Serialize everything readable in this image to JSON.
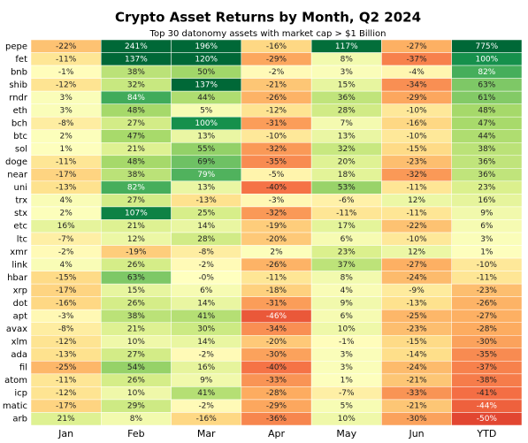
{
  "chart_data": {
    "type": "heatmap",
    "title": "Crypto Asset Returns by Month, Q2 2024",
    "subtitle": "Top 30 datonomy assets with market cap > $1 Billion",
    "x": [
      "Jan",
      "Feb",
      "Mar",
      "Apr",
      "May",
      "Jun",
      "YTD"
    ],
    "y": [
      "pepe",
      "fet",
      "bnb",
      "shib",
      "rndr",
      "eth",
      "bch",
      "btc",
      "sol",
      "doge",
      "near",
      "uni",
      "trx",
      "stx",
      "etc",
      "ltc",
      "xmr",
      "link",
      "hbar",
      "xrp",
      "dot",
      "apt",
      "avax",
      "xlm",
      "ada",
      "fil",
      "atom",
      "icp",
      "matic",
      "arb"
    ],
    "values": [
      [
        -22,
        241,
        196,
        -16,
        117,
        -27,
        775
      ],
      [
        -11,
        137,
        120,
        -29,
        8,
        -37,
        100
      ],
      [
        -1,
        38,
        50,
        -2,
        3,
        -4,
        82
      ],
      [
        -12,
        32,
        137,
        -21,
        15,
        -34,
        63
      ],
      [
        3,
        84,
        44,
        -26,
        36,
        -29,
        61
      ],
      [
        3,
        48,
        5,
        -12,
        28,
        -10,
        48
      ],
      [
        -8,
        27,
        100,
        -31,
        7,
        -16,
        47
      ],
      [
        2,
        47,
        13,
        -10,
        13,
        -10,
        44
      ],
      [
        1,
        21,
        55,
        -32,
        32,
        -15,
        38
      ],
      [
        -11,
        48,
        69,
        -35,
        20,
        -23,
        36
      ],
      [
        -17,
        38,
        79,
        -5,
        18,
        -32,
        36
      ],
      [
        -13,
        82,
        13,
        -40,
        53,
        -11,
        23
      ],
      [
        4,
        27,
        -13,
        -3,
        -6,
        12,
        16
      ],
      [
        2,
        107,
        25,
        -32,
        -11,
        -11,
        9
      ],
      [
        16,
        21,
        14,
        -19,
        17,
        -22,
        6
      ],
      [
        -7,
        12,
        28,
        -20,
        6,
        -10,
        3
      ],
      [
        -2,
        -19,
        -8,
        2,
        23,
        12,
        1
      ],
      [
        4,
        26,
        -2,
        -26,
        37,
        -27,
        -10
      ],
      [
        -15,
        63,
        0,
        -11,
        8,
        -24,
        -11
      ],
      [
        -17,
        15,
        6,
        -18,
        4,
        -9,
        -23
      ],
      [
        -16,
        26,
        14,
        -31,
        9,
        -13,
        -26
      ],
      [
        -3,
        38,
        41,
        -46,
        6,
        -25,
        -27
      ],
      [
        -8,
        21,
        30,
        -34,
        10,
        -23,
        -28
      ],
      [
        -12,
        10,
        14,
        -20,
        -1,
        -15,
        -30
      ],
      [
        -13,
        27,
        -2,
        -30,
        3,
        -14,
        -35
      ],
      [
        -25,
        54,
        16,
        -40,
        3,
        -24,
        -37
      ],
      [
        -11,
        26,
        9,
        -33,
        1,
        -21,
        -38
      ],
      [
        -12,
        10,
        41,
        -28,
        -7,
        -33,
        -41
      ],
      [
        -17,
        29,
        -2,
        -29,
        5,
        -21,
        -44
      ],
      [
        21,
        8,
        -16,
        -36,
        10,
        -30,
        -50
      ]
    ],
    "value_labels": [
      [
        "-22%",
        "241%",
        "196%",
        "-16%",
        "117%",
        "-27%",
        "775%"
      ],
      [
        "-11%",
        "137%",
        "120%",
        "-29%",
        "8%",
        "-37%",
        "100%"
      ],
      [
        "-1%",
        "38%",
        "50%",
        "-2%",
        "3%",
        "-4%",
        "82%"
      ],
      [
        "-12%",
        "32%",
        "137%",
        "-21%",
        "15%",
        "-34%",
        "63%"
      ],
      [
        "3%",
        "84%",
        "44%",
        "-26%",
        "36%",
        "-29%",
        "61%"
      ],
      [
        "3%",
        "48%",
        "5%",
        "-12%",
        "28%",
        "-10%",
        "48%"
      ],
      [
        "-8%",
        "27%",
        "100%",
        "-31%",
        "7%",
        "-16%",
        "47%"
      ],
      [
        "2%",
        "47%",
        "13%",
        "-10%",
        "13%",
        "-10%",
        "44%"
      ],
      [
        "1%",
        "21%",
        "55%",
        "-32%",
        "32%",
        "-15%",
        "38%"
      ],
      [
        "-11%",
        "48%",
        "69%",
        "-35%",
        "20%",
        "-23%",
        "36%"
      ],
      [
        "-17%",
        "38%",
        "79%",
        "-5%",
        "18%",
        "-32%",
        "36%"
      ],
      [
        "-13%",
        "82%",
        "13%",
        "-40%",
        "53%",
        "-11%",
        "23%"
      ],
      [
        "4%",
        "27%",
        "-13%",
        "-3%",
        "-6%",
        "12%",
        "16%"
      ],
      [
        "2%",
        "107%",
        "25%",
        "-32%",
        "-11%",
        "-11%",
        "9%"
      ],
      [
        "16%",
        "21%",
        "14%",
        "-19%",
        "17%",
        "-22%",
        "6%"
      ],
      [
        "-7%",
        "12%",
        "28%",
        "-20%",
        "6%",
        "-10%",
        "3%"
      ],
      [
        "-2%",
        "-19%",
        "-8%",
        "2%",
        "23%",
        "12%",
        "1%"
      ],
      [
        "4%",
        "26%",
        "-2%",
        "-26%",
        "37%",
        "-27%",
        "-10%"
      ],
      [
        "-15%",
        "63%",
        "-0%",
        "-11%",
        "8%",
        "-24%",
        "-11%"
      ],
      [
        "-17%",
        "15%",
        "6%",
        "-18%",
        "4%",
        "-9%",
        "-23%"
      ],
      [
        "-16%",
        "26%",
        "14%",
        "-31%",
        "9%",
        "-13%",
        "-26%"
      ],
      [
        "-3%",
        "38%",
        "41%",
        "-46%",
        "6%",
        "-25%",
        "-27%"
      ],
      [
        "-8%",
        "21%",
        "30%",
        "-34%",
        "10%",
        "-23%",
        "-28%"
      ],
      [
        "-12%",
        "10%",
        "14%",
        "-20%",
        "-1%",
        "-15%",
        "-30%"
      ],
      [
        "-13%",
        "27%",
        "-2%",
        "-30%",
        "3%",
        "-14%",
        "-35%"
      ],
      [
        "-25%",
        "54%",
        "16%",
        "-40%",
        "3%",
        "-24%",
        "-37%"
      ],
      [
        "-11%",
        "26%",
        "9%",
        "-33%",
        "1%",
        "-21%",
        "-38%"
      ],
      [
        "-12%",
        "10%",
        "41%",
        "-28%",
        "-7%",
        "-33%",
        "-41%"
      ],
      [
        "-17%",
        "29%",
        "-2%",
        "-29%",
        "5%",
        "-21%",
        "-44%"
      ],
      [
        "21%",
        "8%",
        "-16%",
        "-36%",
        "10%",
        "-30%",
        "-50%"
      ]
    ]
  }
}
